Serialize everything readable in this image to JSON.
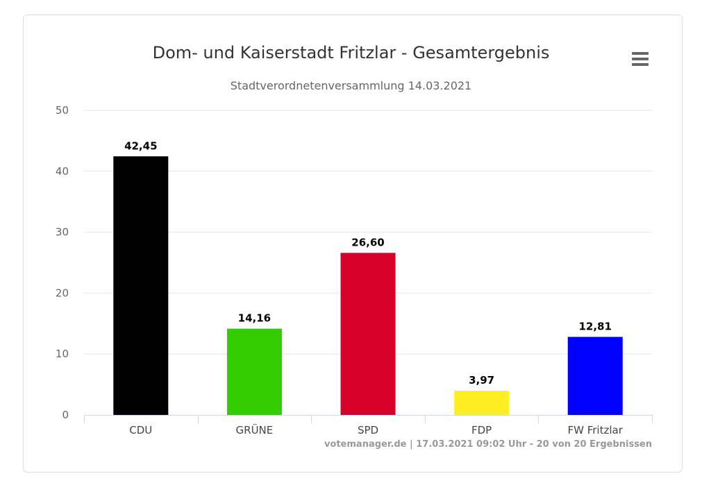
{
  "chart_data": {
    "type": "bar",
    "title": "Dom- und Kaiserstadt Fritzlar - Gesamtergebnis",
    "subtitle": "Stadtverordnetenversammlung 14.03.2021",
    "categories": [
      "CDU",
      "GRÜNE",
      "SPD",
      "FDP",
      "FW Fritzlar"
    ],
    "values": [
      42.45,
      14.16,
      26.6,
      3.97,
      12.81
    ],
    "data_labels": [
      "42,45",
      "14,16",
      "26,60",
      "3,97",
      "12,81"
    ],
    "colors": [
      "#000000",
      "#33cc00",
      "#d6002b",
      "#ffed25",
      "#0000ff"
    ],
    "xlabel": "",
    "ylabel": "",
    "ylim": [
      0,
      50
    ],
    "yticks": [
      0,
      10,
      20,
      30,
      40,
      50
    ],
    "ytick_labels": [
      "0",
      "10",
      "20",
      "30",
      "40",
      "50"
    ],
    "grid": true,
    "legend": "none"
  },
  "credits": "votemanager.de | 17.03.2021 09:02 Uhr - 20 von 20 Ergebnissen",
  "menu": {
    "icon": "hamburger-menu-icon"
  }
}
